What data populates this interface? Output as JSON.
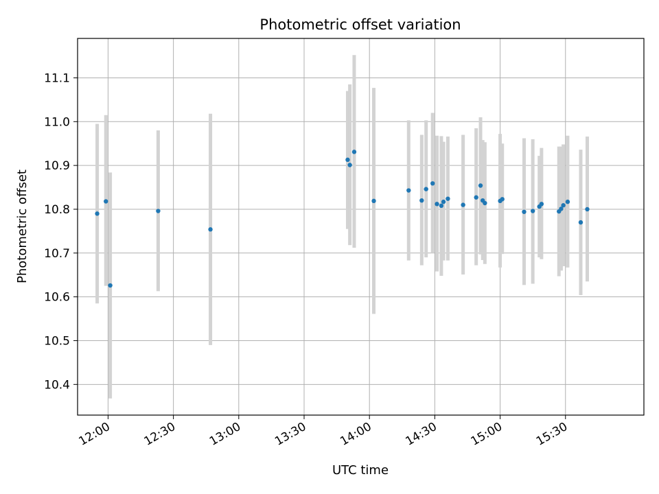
{
  "chart_data": {
    "type": "scatter",
    "title": "Photometric offset variation",
    "xlabel": "UTC time",
    "ylabel": "Photometric offset",
    "x_axis": {
      "kind": "time",
      "range": [
        "11:46",
        "16:06"
      ],
      "ticks": [
        "12:00",
        "12:30",
        "13:00",
        "13:30",
        "14:00",
        "14:30",
        "15:00",
        "15:30"
      ]
    },
    "y_axis": {
      "range": [
        10.33,
        11.19
      ],
      "ticks": [
        "10.4",
        "10.5",
        "10.6",
        "10.7",
        "10.8",
        "10.9",
        "11.0",
        "11.1"
      ]
    },
    "grid": true,
    "colors": {
      "point": "#1f77b4",
      "errorbar": "#d3d3d3",
      "grid": "#b0b0b0"
    },
    "points": [
      {
        "time": "11:55",
        "value": 10.79,
        "low": 10.585,
        "high": 10.995
      },
      {
        "time": "11:59",
        "value": 10.818,
        "low": 10.625,
        "high": 11.015
      },
      {
        "time": "12:01",
        "value": 10.626,
        "low": 10.368,
        "high": 10.884
      },
      {
        "time": "12:23",
        "value": 10.796,
        "low": 10.613,
        "high": 10.98
      },
      {
        "time": "12:47",
        "value": 10.754,
        "low": 10.49,
        "high": 11.018
      },
      {
        "time": "13:50",
        "value": 10.913,
        "low": 10.755,
        "high": 11.07
      },
      {
        "time": "13:51",
        "value": 10.901,
        "low": 10.718,
        "high": 11.085
      },
      {
        "time": "13:53",
        "value": 10.931,
        "low": 10.712,
        "high": 11.152
      },
      {
        "time": "14:02",
        "value": 10.819,
        "low": 10.561,
        "high": 11.077
      },
      {
        "time": "14:18",
        "value": 10.843,
        "low": 10.683,
        "high": 11.003
      },
      {
        "time": "14:24",
        "value": 10.82,
        "low": 10.672,
        "high": 10.97
      },
      {
        "time": "14:26",
        "value": 10.846,
        "low": 10.69,
        "high": 11.003
      },
      {
        "time": "14:29",
        "value": 10.859,
        "low": 10.7,
        "high": 11.02
      },
      {
        "time": "14:31",
        "value": 10.812,
        "low": 10.658,
        "high": 10.968
      },
      {
        "time": "14:33",
        "value": 10.808,
        "low": 10.648,
        "high": 10.967
      },
      {
        "time": "14:34",
        "value": 10.817,
        "low": 10.683,
        "high": 10.954
      },
      {
        "time": "14:36",
        "value": 10.824,
        "low": 10.683,
        "high": 10.966
      },
      {
        "time": "14:43",
        "value": 10.81,
        "low": 10.651,
        "high": 10.97
      },
      {
        "time": "14:49",
        "value": 10.827,
        "low": 10.672,
        "high": 10.985
      },
      {
        "time": "14:51",
        "value": 10.854,
        "low": 10.697,
        "high": 11.01
      },
      {
        "time": "14:52",
        "value": 10.82,
        "low": 10.684,
        "high": 10.958
      },
      {
        "time": "14:53",
        "value": 10.814,
        "low": 10.675,
        "high": 10.953
      },
      {
        "time": "15:00",
        "value": 10.819,
        "low": 10.667,
        "high": 10.972
      },
      {
        "time": "15:01",
        "value": 10.823,
        "low": 10.698,
        "high": 10.95
      },
      {
        "time": "15:11",
        "value": 10.794,
        "low": 10.627,
        "high": 10.962
      },
      {
        "time": "15:15",
        "value": 10.796,
        "low": 10.63,
        "high": 10.96
      },
      {
        "time": "15:18",
        "value": 10.806,
        "low": 10.69,
        "high": 10.922
      },
      {
        "time": "15:19",
        "value": 10.812,
        "low": 10.686,
        "high": 10.94
      },
      {
        "time": "15:27",
        "value": 10.795,
        "low": 10.647,
        "high": 10.943
      },
      {
        "time": "15:28",
        "value": 10.801,
        "low": 10.66,
        "high": 10.943
      },
      {
        "time": "15:29",
        "value": 10.809,
        "low": 10.67,
        "high": 10.948
      },
      {
        "time": "15:31",
        "value": 10.817,
        "low": 10.667,
        "high": 10.968
      },
      {
        "time": "15:37",
        "value": 10.77,
        "low": 10.604,
        "high": 10.936
      },
      {
        "time": "15:40",
        "value": 10.8,
        "low": 10.635,
        "high": 10.966
      }
    ]
  }
}
